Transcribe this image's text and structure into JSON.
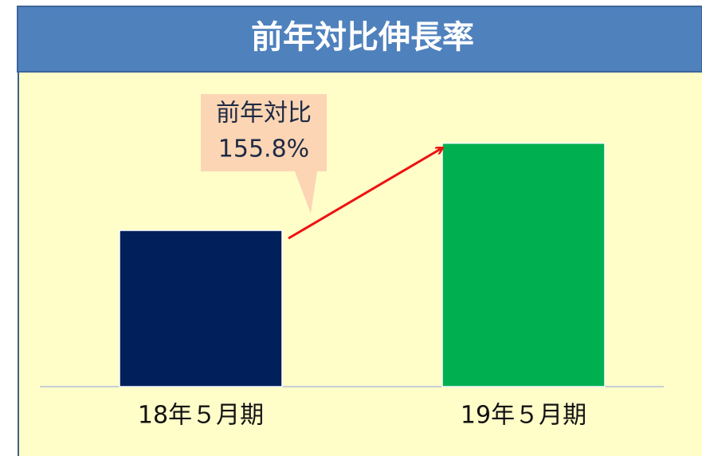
{
  "chart_data": {
    "type": "bar",
    "title": "前年対比伸長率",
    "categories": [
      "18年５月期",
      "19年５月期"
    ],
    "values": [
      100,
      155.8
    ],
    "colors": [
      "#001f5b",
      "#00b050"
    ],
    "ylim": [
      0,
      200
    ],
    "annotation": [
      "前年対比",
      "155.8%"
    ]
  }
}
